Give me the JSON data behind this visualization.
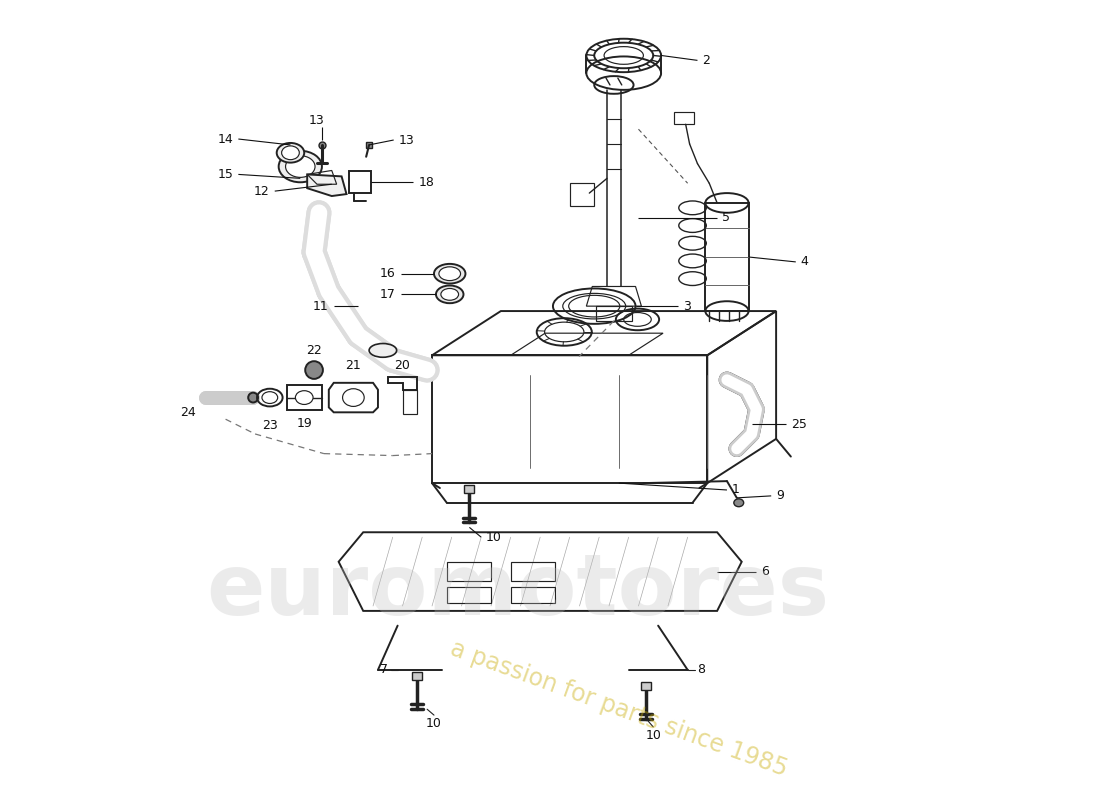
{
  "bg_color": "#ffffff",
  "line_color": "#222222",
  "lw_main": 1.4,
  "lw_thick": 3.5,
  "lw_thin": 0.85,
  "fs_label": 9.0,
  "wm1": "euromotores",
  "wm2": "a passion for parts since 1985",
  "figw": 11.0,
  "figh": 8.0
}
